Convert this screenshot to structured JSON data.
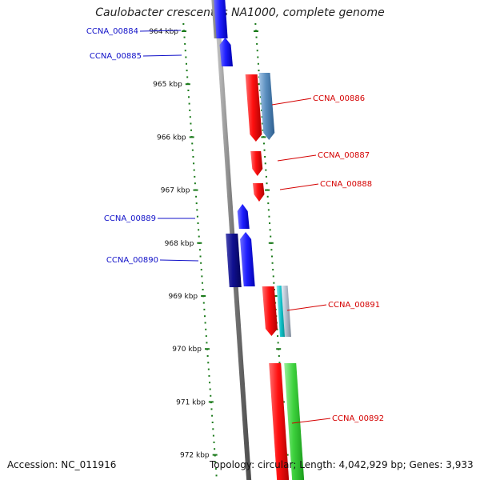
{
  "title": "Caulobacter crescentus NA1000, complete genome",
  "footer": {
    "accession": "Accession: NC_011916",
    "summary": "Topology: circular; Length: 4,042,929 bp; Genes: 3,933"
  },
  "colors": {
    "backbone": "#808080",
    "tick": "#1a7a1a",
    "plus_label": "#d40000",
    "minus_label": "#1010c8"
  },
  "ruler_ticks": [
    {
      "kbp": 964,
      "label": "964 kbp"
    },
    {
      "kbp": 965,
      "label": "965 kbp"
    },
    {
      "kbp": 966,
      "label": "966 kbp"
    },
    {
      "kbp": 967,
      "label": "967 kbp"
    },
    {
      "kbp": 968,
      "label": "968 kbp"
    },
    {
      "kbp": 969,
      "label": "969 kbp"
    },
    {
      "kbp": 970,
      "label": "970 kbp"
    },
    {
      "kbp": 971,
      "label": "971 kbp"
    },
    {
      "kbp": 972,
      "label": "972 kbp"
    }
  ],
  "genes": [
    {
      "id": "CCNA_00884",
      "strand": "-"
    },
    {
      "id": "CCNA_00885",
      "strand": "-"
    },
    {
      "id": "CCNA_00886",
      "strand": "+"
    },
    {
      "id": "CCNA_00887",
      "strand": "+"
    },
    {
      "id": "CCNA_00888",
      "strand": "+"
    },
    {
      "id": "CCNA_00889",
      "strand": "-"
    },
    {
      "id": "CCNA_00890",
      "strand": "-"
    },
    {
      "id": "CCNA_00891",
      "strand": "+"
    },
    {
      "id": "CCNA_00892",
      "strand": "+"
    }
  ]
}
